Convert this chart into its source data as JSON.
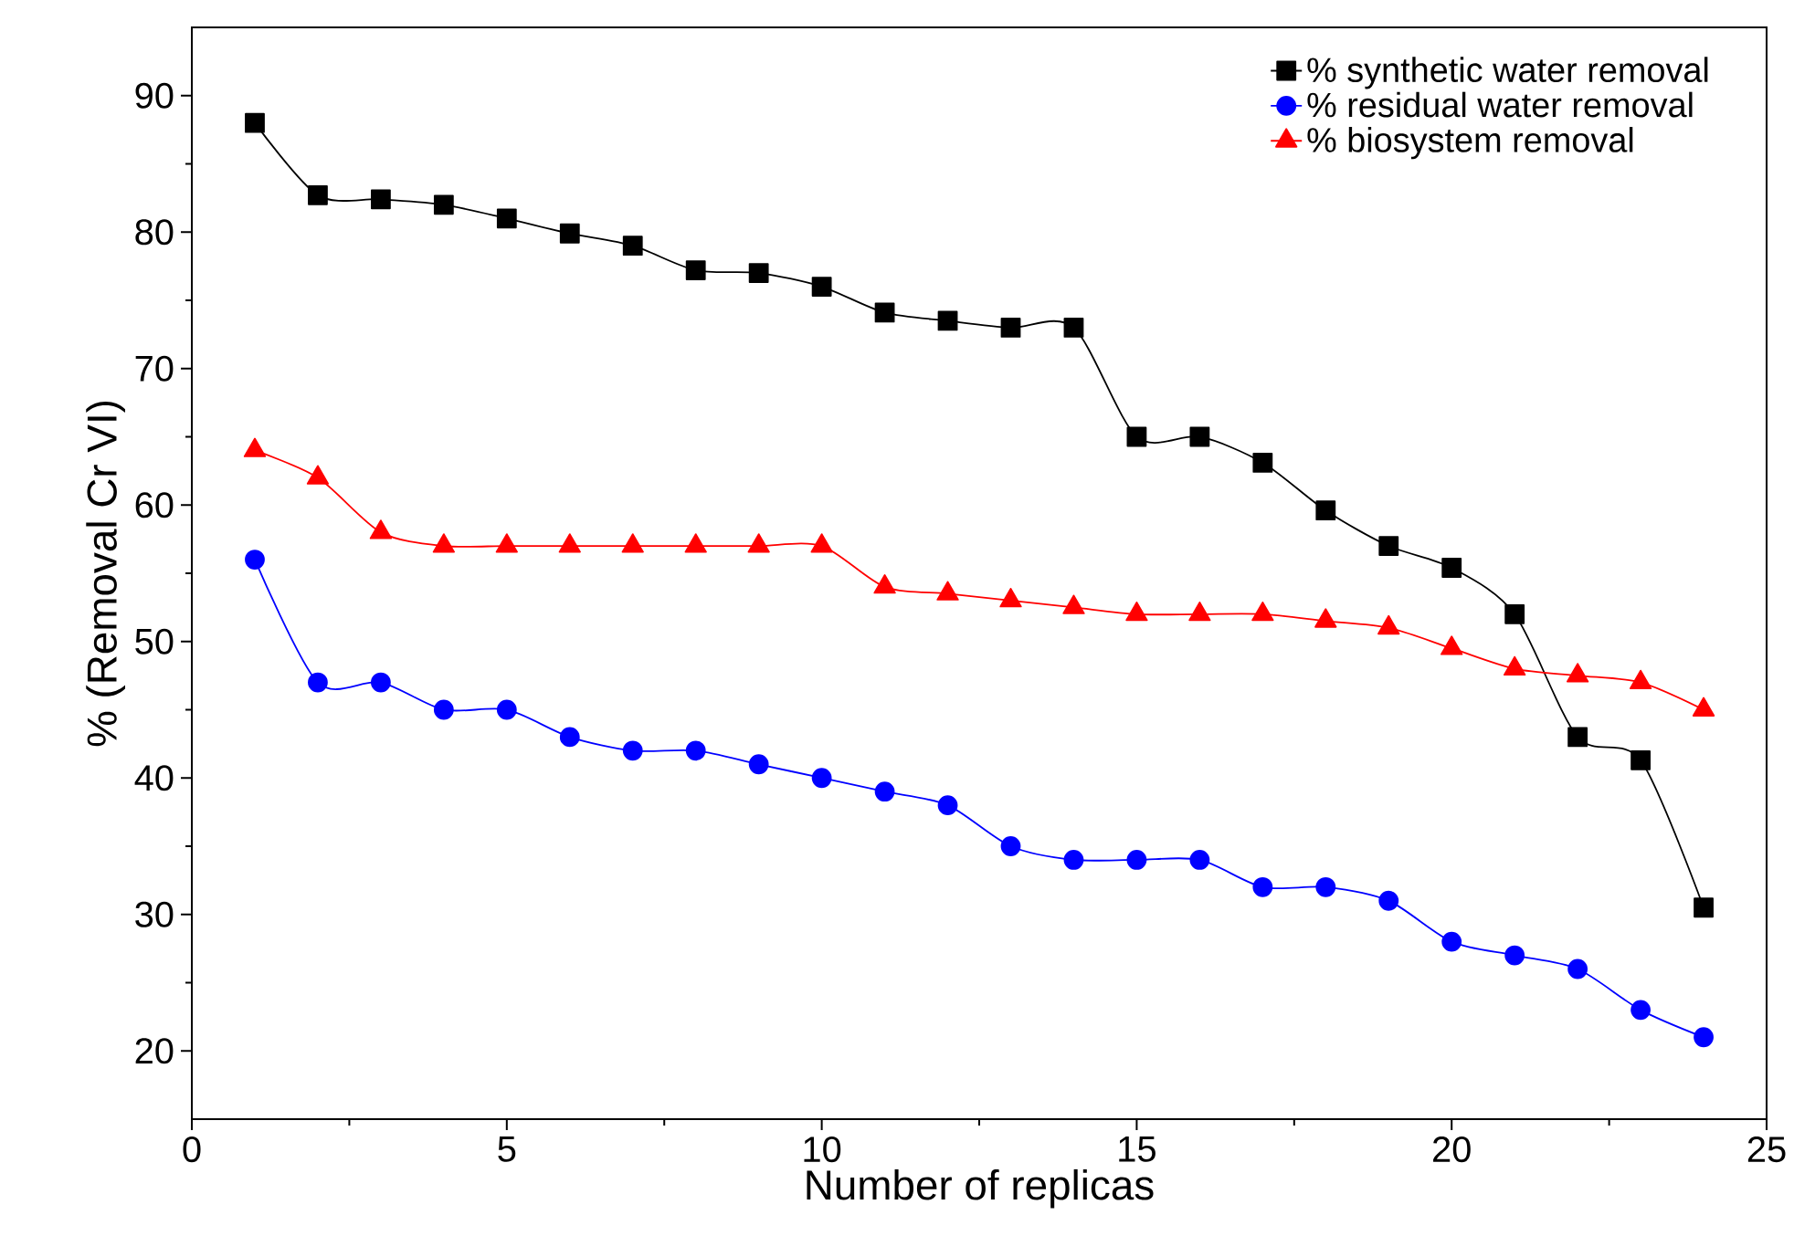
{
  "chart_data": {
    "type": "line",
    "xlabel": "Number of replicas",
    "ylabel": "% (Removal Cr VI)",
    "x": [
      1,
      2,
      3,
      4,
      5,
      6,
      7,
      8,
      9,
      10,
      11,
      12,
      13,
      14,
      15,
      16,
      17,
      18,
      19,
      20,
      21,
      22,
      23,
      24
    ],
    "xlim": [
      0,
      25
    ],
    "xticks": [
      0,
      5,
      10,
      15,
      20,
      25
    ],
    "ylim": [
      15,
      95
    ],
    "yticks": [
      20,
      30,
      40,
      50,
      60,
      70,
      80,
      90
    ],
    "grid": false,
    "legend": "top right",
    "series": [
      {
        "name": "% synthetic water removal",
        "color": "#000000",
        "marker": "square",
        "values": [
          88,
          82.7,
          82.4,
          82,
          81,
          79.9,
          79,
          77.2,
          77,
          76,
          74.1,
          73.5,
          73,
          73,
          65,
          65,
          63.1,
          59.6,
          57,
          55.4,
          52,
          43,
          41.3,
          30.5
        ]
      },
      {
        "name": "% residual water removal",
        "color": "#0000ff",
        "marker": "circle",
        "values": [
          56,
          47,
          47,
          45,
          45,
          43,
          42,
          42,
          41,
          40,
          39,
          38,
          35,
          34,
          34,
          34,
          32,
          32,
          31,
          28,
          27,
          26,
          23,
          21
        ]
      },
      {
        "name": "% biosystem removal",
        "color": "#ff0000",
        "marker": "triangle",
        "values": [
          64,
          62,
          58,
          57,
          57,
          57,
          57,
          57,
          57,
          57,
          54,
          53.5,
          53,
          52.5,
          52,
          52,
          52,
          51.5,
          51,
          49.5,
          48,
          47.5,
          47,
          45
        ]
      }
    ]
  }
}
